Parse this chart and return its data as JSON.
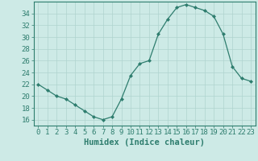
{
  "x": [
    0,
    1,
    2,
    3,
    4,
    5,
    6,
    7,
    8,
    9,
    10,
    11,
    12,
    13,
    14,
    15,
    16,
    17,
    18,
    19,
    20,
    21,
    22,
    23
  ],
  "y": [
    22,
    21,
    20,
    19.5,
    18.5,
    17.5,
    16.5,
    16,
    16.5,
    19.5,
    23.5,
    25.5,
    26,
    30.5,
    33,
    35,
    35.5,
    35,
    34.5,
    33.5,
    30.5,
    25,
    23,
    22.5
  ],
  "line_color": "#2e7d6e",
  "marker": "D",
  "marker_size": 2.0,
  "bg_color": "#cdeae6",
  "grid_color": "#afd4cf",
  "axes_color": "#2e7d6e",
  "xlabel": "Humidex (Indice chaleur)",
  "xlabel_fontsize": 7.5,
  "tick_fontsize": 6.5,
  "ylim": [
    15,
    36
  ],
  "xlim": [
    -0.5,
    23.5
  ],
  "yticks": [
    16,
    18,
    20,
    22,
    24,
    26,
    28,
    30,
    32,
    34
  ],
  "xticks": [
    0,
    1,
    2,
    3,
    4,
    5,
    6,
    7,
    8,
    9,
    10,
    11,
    12,
    13,
    14,
    15,
    16,
    17,
    18,
    19,
    20,
    21,
    22,
    23
  ]
}
